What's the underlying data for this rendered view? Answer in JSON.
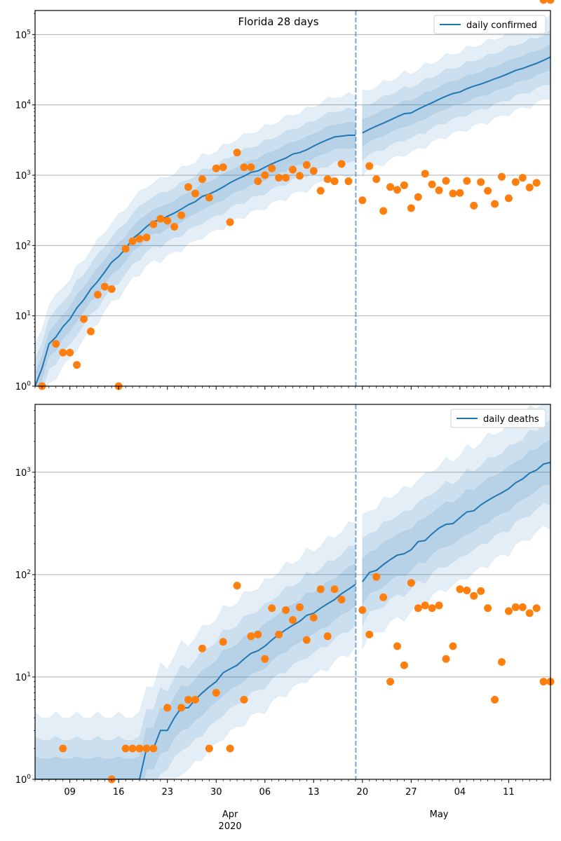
{
  "chart_data": [
    {
      "type": "line",
      "panel": "top",
      "title": "Florida 28 days",
      "yscale": "log",
      "ylim": [
        1,
        220000
      ],
      "ytick_labels": [
        {
          "base": "10",
          "exp": "0",
          "value": 1
        },
        {
          "base": "10",
          "exp": "1",
          "value": 10
        },
        {
          "base": "10",
          "exp": "2",
          "value": 100
        },
        {
          "base": "10",
          "exp": "3",
          "value": 1000
        },
        {
          "base": "10",
          "exp": "4",
          "value": 10000
        },
        {
          "base": "10",
          "exp": "5",
          "value": 100000
        }
      ],
      "grid": "horizontal-major",
      "legend": {
        "label": "daily confirmed",
        "placement": "top-right"
      },
      "forecast_start_day": 46,
      "observed": {
        "name": "daily confirmed (observed)",
        "color": "#ff7f0e",
        "days": [
          1,
          3,
          4,
          5,
          6,
          7,
          8,
          9,
          10,
          11,
          12,
          13,
          14,
          15,
          16,
          17,
          18,
          19,
          20,
          21,
          22,
          23,
          24,
          25,
          26,
          27,
          28,
          29,
          30,
          31,
          32,
          33,
          34,
          35,
          36,
          37,
          38,
          39,
          40,
          41,
          42,
          43,
          44,
          45,
          47,
          48,
          49,
          50,
          51,
          52,
          53,
          54,
          55,
          56,
          57,
          58,
          59,
          60,
          61,
          62,
          63,
          64,
          65,
          66,
          67,
          68,
          69,
          70,
          71,
          72,
          73,
          74
        ],
        "values": [
          1,
          4,
          3,
          3,
          2,
          9,
          6,
          20,
          26,
          24,
          1,
          90,
          115,
          125,
          130,
          200,
          240,
          225,
          185,
          270,
          680,
          550,
          880,
          480,
          1250,
          1300,
          215,
          2100,
          1300,
          1300,
          820,
          1000,
          1250,
          920,
          920,
          1200,
          980,
          1400,
          1150,
          600,
          880,
          820,
          1450,
          820,
          440,
          1350,
          880,
          310,
          680,
          620,
          720,
          340,
          490,
          1050,
          740,
          610,
          830,
          550,
          560,
          830,
          370,
          800,
          600,
          390,
          950,
          470,
          800,
          920,
          670,
          780
        ]
      },
      "model": {
        "name": "daily confirmed",
        "color": "#1f77b4",
        "fit_days": [
          0,
          1,
          2,
          3,
          4,
          5,
          6,
          7,
          8,
          9,
          10,
          11,
          12,
          13,
          14,
          15,
          16,
          17,
          18,
          19,
          20,
          21,
          22,
          23,
          24,
          25,
          26,
          27,
          28,
          29,
          30,
          31,
          32,
          33,
          34,
          35,
          36,
          37,
          38,
          39,
          40,
          41,
          42,
          43,
          44,
          45,
          46
        ],
        "fit_median": [
          1,
          1.8,
          4,
          5,
          7,
          9,
          13,
          17,
          24,
          31,
          42,
          58,
          70,
          90,
          125,
          150,
          185,
          220,
          230,
          260,
          290,
          330,
          380,
          420,
          500,
          540,
          600,
          680,
          780,
          880,
          970,
          1100,
          1150,
          1300,
          1450,
          1600,
          1750,
          2000,
          2100,
          2300,
          2600,
          2900,
          3200,
          3500,
          3600,
          3700,
          3700
        ],
        "forecast_days": [
          47,
          48,
          49,
          50,
          51,
          52,
          53,
          54,
          55,
          56,
          57,
          58,
          59,
          60,
          61,
          62,
          63,
          64,
          65,
          66,
          67,
          68,
          69,
          70,
          71,
          72,
          73,
          74
        ],
        "forecast_median": [
          4000,
          4500,
          5000,
          5500,
          6100,
          6800,
          7500,
          7700,
          8700,
          9700,
          10700,
          12000,
          13300,
          14500,
          15300,
          17000,
          18500,
          19800,
          21500,
          23500,
          25500,
          28000,
          31000,
          33000,
          36000,
          39000,
          43000,
          48000
        ],
        "bands": [
          {
            "level": "outer",
            "alpha": 0.12
          },
          {
            "level": "middle",
            "alpha": 0.12
          },
          {
            "level": "inner",
            "alpha": 0.12
          }
        ]
      }
    },
    {
      "type": "line",
      "panel": "bottom",
      "title": "",
      "yscale": "log",
      "ylim": [
        1,
        4600
      ],
      "ytick_labels": [
        {
          "base": "10",
          "exp": "0",
          "value": 1
        },
        {
          "base": "10",
          "exp": "1",
          "value": 10
        },
        {
          "base": "10",
          "exp": "2",
          "value": 100
        },
        {
          "base": "10",
          "exp": "3",
          "value": 1000
        }
      ],
      "grid": "horizontal-major",
      "legend": {
        "label": "daily deaths",
        "placement": "top-right"
      },
      "forecast_start_day": 46,
      "observed": {
        "name": "daily deaths (observed)",
        "color": "#ff7f0e",
        "days": [
          4,
          11,
          13,
          14,
          15,
          16,
          17,
          19,
          21,
          22,
          23,
          24,
          25,
          26,
          27,
          28,
          29,
          30,
          31,
          32,
          33,
          34,
          35,
          36,
          37,
          38,
          39,
          40,
          41,
          42,
          43,
          44,
          47,
          48,
          49,
          50,
          51,
          52,
          53,
          54,
          55,
          56,
          57,
          58,
          59,
          60,
          61,
          62,
          63,
          64,
          65,
          66,
          67,
          68,
          69,
          70,
          71,
          72,
          73,
          74
        ],
        "values": [
          2,
          1,
          2,
          2,
          2,
          2,
          2,
          5,
          5,
          6,
          6,
          19,
          2,
          7,
          22,
          2,
          78,
          6,
          25,
          26,
          15,
          47,
          26,
          45,
          36,
          48,
          23,
          38,
          72,
          25,
          72,
          57,
          45,
          26,
          95,
          60,
          9,
          20,
          13,
          83,
          47,
          50,
          47,
          50,
          15,
          20,
          72,
          70,
          62,
          69,
          47,
          6,
          14,
          44,
          48,
          48,
          42,
          47,
          9,
          9
        ]
      },
      "model": {
        "name": "daily deaths",
        "color": "#1f77b4",
        "fit_days": [
          0,
          1,
          2,
          3,
          4,
          5,
          6,
          7,
          8,
          9,
          10,
          11,
          12,
          13,
          14,
          15,
          16,
          17,
          18,
          19,
          20,
          21,
          22,
          23,
          24,
          25,
          26,
          27,
          28,
          29,
          30,
          31,
          32,
          33,
          34,
          35,
          36,
          37,
          38,
          39,
          40,
          41,
          42,
          43,
          44,
          45,
          46
        ],
        "fit_median": [
          1,
          1,
          1,
          1,
          1,
          1,
          1,
          1,
          1,
          1,
          1,
          1,
          1,
          1,
          1,
          1,
          2,
          2,
          3,
          3,
          4,
          5,
          5,
          6,
          7,
          8,
          9,
          11,
          12,
          13,
          15,
          17,
          18,
          20,
          23,
          26,
          29,
          32,
          35,
          40,
          42,
          47,
          52,
          57,
          65,
          72,
          80
        ],
        "forecast_days": [
          47,
          48,
          49,
          50,
          51,
          52,
          53,
          54,
          55,
          56,
          57,
          58,
          59,
          60,
          61,
          62,
          63,
          64,
          65,
          66,
          67,
          68,
          69,
          70,
          71,
          72,
          73,
          74
        ],
        "forecast_median": [
          85,
          105,
          110,
          125,
          140,
          155,
          160,
          175,
          210,
          215,
          250,
          285,
          310,
          315,
          360,
          410,
          420,
          480,
          530,
          580,
          630,
          690,
          790,
          860,
          980,
          1050,
          1200,
          1250
        ],
        "bands": [
          {
            "level": "outer",
            "alpha": 0.12
          },
          {
            "level": "middle",
            "alpha": 0.12
          },
          {
            "level": "inner",
            "alpha": 0.12
          }
        ]
      }
    }
  ],
  "x_axis": {
    "start_date": "2020-03-04",
    "n_days": 74,
    "major_ticks": [
      {
        "day": 5,
        "label": "09"
      },
      {
        "day": 12,
        "label": "16"
      },
      {
        "day": 19,
        "label": "23"
      },
      {
        "day": 26,
        "label": "30"
      },
      {
        "day": 33,
        "label": "06"
      },
      {
        "day": 40,
        "label": "13"
      },
      {
        "day": 47,
        "label": "20"
      },
      {
        "day": 54,
        "label": "27"
      },
      {
        "day": 61,
        "label": "04"
      },
      {
        "day": 68,
        "label": "11"
      }
    ],
    "month_labels": [
      {
        "day": 28,
        "label": "Apr",
        "sublabel": "2020"
      },
      {
        "day": 58,
        "label": "May",
        "sublabel": ""
      }
    ]
  },
  "colors": {
    "line": "#1f77b4",
    "points": "#ff7f0e",
    "band": "#1f77b4",
    "vline": "#1f77b4",
    "grid": "#b0b0b0"
  }
}
